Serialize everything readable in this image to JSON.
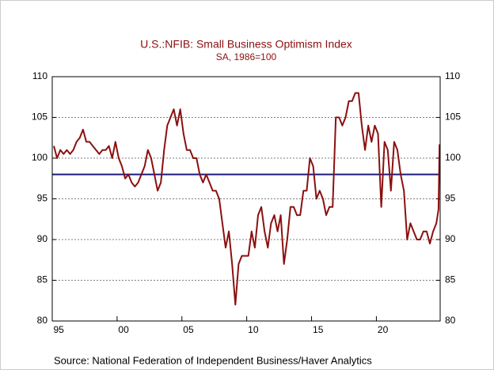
{
  "chart_data": {
    "type": "line",
    "title": "U.S.:NFIB: Small Business Optimism Index",
    "subtitle": "SA, 1986=100",
    "source": "Source:  National Federation of Independent Business/Haver Analytics",
    "x": [
      1995.125,
      1995.375,
      1995.625,
      1995.875,
      1996.125,
      1996.375,
      1996.625,
      1996.875,
      1997.125,
      1997.375,
      1997.625,
      1997.875,
      1998.125,
      1998.375,
      1998.625,
      1998.875,
      1999.125,
      1999.375,
      1999.625,
      1999.875,
      2000.125,
      2000.375,
      2000.625,
      2000.875,
      2001.125,
      2001.375,
      2001.625,
      2001.875,
      2002.125,
      2002.375,
      2002.625,
      2002.875,
      2003.125,
      2003.375,
      2003.625,
      2003.875,
      2004.125,
      2004.375,
      2004.625,
      2004.875,
      2005.125,
      2005.375,
      2005.625,
      2005.875,
      2006.125,
      2006.375,
      2006.625,
      2006.875,
      2007.125,
      2007.375,
      2007.625,
      2007.875,
      2008.125,
      2008.375,
      2008.625,
      2008.875,
      2009.125,
      2009.375,
      2009.625,
      2009.875,
      2010.125,
      2010.375,
      2010.625,
      2010.875,
      2011.125,
      2011.375,
      2011.625,
      2011.875,
      2012.125,
      2012.375,
      2012.625,
      2012.875,
      2013.125,
      2013.375,
      2013.625,
      2013.875,
      2014.125,
      2014.375,
      2014.625,
      2014.875,
      2015.125,
      2015.375,
      2015.625,
      2015.875,
      2016.125,
      2016.375,
      2016.625,
      2016.875,
      2017.125,
      2017.375,
      2017.625,
      2017.875,
      2018.125,
      2018.375,
      2018.625,
      2018.875,
      2019.125,
      2019.375,
      2019.625,
      2019.875,
      2020.125,
      2020.375,
      2020.625,
      2020.875,
      2021.125,
      2021.375,
      2021.625,
      2021.875,
      2022.125,
      2022.375,
      2022.625,
      2022.875,
      2023.125,
      2023.375,
      2023.625,
      2023.875,
      2024.125,
      2024.375,
      2024.625,
      2024.79,
      2024.87
    ],
    "series": [
      {
        "name": "Small Business Optimism Index",
        "color": "#8b1010",
        "values": [
          101.5,
          100,
          101,
          100.5,
          101,
          100.5,
          101,
          102,
          102.5,
          103.5,
          102,
          102,
          101.5,
          101,
          100.5,
          101,
          101,
          101.5,
          100,
          102,
          100,
          99,
          97.5,
          98,
          97,
          96.5,
          97,
          98,
          99,
          101,
          100,
          98,
          96,
          97,
          101,
          104,
          105,
          106,
          104,
          106,
          103,
          101,
          101,
          100,
          100,
          98,
          97,
          98,
          97,
          96,
          96,
          95,
          92,
          89,
          91,
          87,
          82,
          87,
          88,
          88,
          88,
          91,
          89,
          93,
          94,
          91,
          89,
          92,
          93,
          91,
          93,
          87,
          90,
          94,
          94,
          93,
          93,
          96,
          96,
          100,
          99,
          95,
          96,
          95,
          93,
          94,
          94,
          105,
          105,
          104,
          105,
          107,
          107,
          108,
          108,
          104,
          101,
          104,
          102,
          104,
          103,
          94,
          102,
          101,
          96,
          102,
          101,
          98,
          96,
          90,
          92,
          91,
          90,
          90,
          91,
          91,
          89.5,
          91,
          92,
          93.7,
          101.7
        ]
      }
    ],
    "reference_line": {
      "value": 98,
      "color": "#1a1a7a"
    },
    "xlim": [
      1995,
      2024.92
    ],
    "xticks": [
      {
        "value": 1995,
        "label": "95"
      },
      {
        "value": 2000,
        "label": "00"
      },
      {
        "value": 2005,
        "label": "05"
      },
      {
        "value": 2010,
        "label": "10"
      },
      {
        "value": 2015,
        "label": "15"
      },
      {
        "value": 2020,
        "label": "20"
      }
    ],
    "ylim": [
      80,
      110
    ],
    "yticks": [
      80,
      85,
      90,
      95,
      100,
      105,
      110
    ],
    "y2lim": [
      80,
      110
    ],
    "y2ticks": [
      80,
      85,
      90,
      95,
      100,
      105,
      110
    ],
    "grid": true
  }
}
